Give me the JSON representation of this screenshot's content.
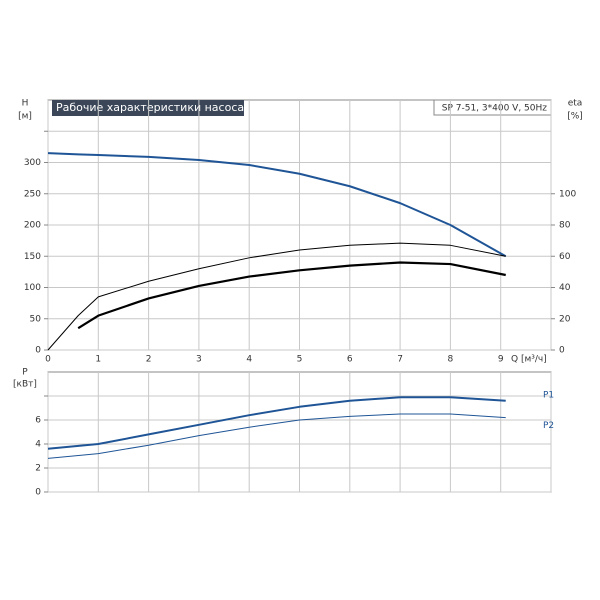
{
  "chart_data": [
    {
      "type": "line",
      "title": "Рабочие характеристики насоса",
      "subtitle": "SP 7-51, 3*400 V, 50Hz",
      "ylabel": "H",
      "yunit": "[м]",
      "y2label": "eta",
      "y2unit": "[%]",
      "xlabel": "Q [м³/ч]",
      "xlim": [
        0,
        10
      ],
      "xticks": [
        0,
        1,
        2,
        3,
        4,
        5,
        6,
        7,
        8,
        9,
        {
          "value": 10,
          "label": null
        }
      ],
      "ylim": [
        0,
        400
      ],
      "yticks": [
        0,
        50,
        100,
        150,
        200,
        250,
        300,
        {
          "value": 350,
          "label": null
        }
      ],
      "y2lim": [
        0,
        160
      ],
      "y2ticks": [
        0,
        20,
        40,
        60,
        80,
        100
      ],
      "grid": true,
      "x": [
        0,
        0.6,
        1,
        2,
        3,
        4,
        5,
        6,
        7,
        8,
        9.1
      ],
      "series": [
        {
          "color": "#1f5596",
          "line_width": 2,
          "values": [
            315,
            313,
            312,
            309,
            304,
            296,
            282,
            262,
            235,
            200,
            150
          ]
        },
        {
          "color": "#000000",
          "line_width": 1,
          "axis": "y2",
          "values": [
            0,
            22,
            34,
            44,
            52,
            59,
            64,
            67,
            68.4,
            67,
            60
          ]
        },
        {
          "color": "#000000",
          "line_width": 2.2,
          "axis": "y2",
          "values": [
            null,
            14,
            22,
            33,
            41,
            47,
            51,
            54,
            56,
            55,
            48
          ]
        }
      ]
    },
    {
      "type": "line",
      "ylabel": "P",
      "yunit": "[кВт]",
      "xlim": [
        0,
        10
      ],
      "xticks": [
        {
          "value": 0,
          "label": null
        },
        {
          "value": 1,
          "label": null
        },
        {
          "value": 2,
          "label": null
        },
        {
          "value": 3,
          "label": null
        },
        {
          "value": 4,
          "label": null
        },
        {
          "value": 5,
          "label": null
        },
        {
          "value": 6,
          "label": null
        },
        {
          "value": 7,
          "label": null
        },
        {
          "value": 8,
          "label": null
        },
        {
          "value": 9,
          "label": null
        },
        {
          "value": 10,
          "label": null
        }
      ],
      "ylim": [
        0,
        10
      ],
      "yticks": [
        0,
        2,
        4,
        6,
        {
          "value": 8,
          "label": null
        }
      ],
      "grid": true,
      "x": [
        0,
        1,
        2,
        3,
        4,
        5,
        6,
        7,
        8,
        9.1
      ],
      "series": [
        {
          "name": "P1",
          "color": "#1f5596",
          "line_width": 2,
          "values": [
            3.6,
            4.0,
            4.8,
            5.6,
            6.4,
            7.1,
            7.6,
            7.9,
            7.9,
            7.6
          ]
        },
        {
          "name": "P2",
          "color": "#1f5596",
          "line_width": 1,
          "values": [
            2.8,
            3.2,
            3.9,
            4.7,
            5.4,
            6.0,
            6.3,
            6.5,
            6.5,
            6.2
          ]
        }
      ]
    }
  ]
}
